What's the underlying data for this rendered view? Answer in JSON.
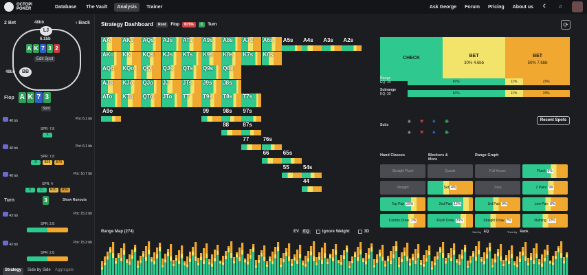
{
  "topbar": {
    "logo_line1": "OCTOPI",
    "logo_line2": "POKER",
    "nav": [
      "Database",
      "The Vault",
      "Analysis",
      "Trainer"
    ],
    "active_nav": "Analysis",
    "right_nav": [
      "Ask George",
      "Forum",
      "Pricing",
      "About us"
    ]
  },
  "left": {
    "bet_label": "2 Bet",
    "back_label": "Back",
    "table": {
      "top_seat": "LJ",
      "top_stack": "48bb",
      "pot": "6.1bb",
      "edit_spot": "Edit Spot",
      "bottom_seat": "BB",
      "bottom_stack": "48bb",
      "board": [
        {
          "rank": "A",
          "color": "g"
        },
        {
          "rank": "K",
          "color": "g"
        },
        {
          "rank": "7",
          "color": "b"
        },
        {
          "rank": "3",
          "color": "g"
        },
        {
          "rank": "2",
          "color": "r"
        }
      ]
    },
    "flop_label": "Flop",
    "flop_cards": [
      {
        "rank": "A",
        "color": "g"
      },
      {
        "rank": "K",
        "color": "g"
      },
      {
        "rank": "7",
        "color": "b"
      },
      {
        "rank": "3",
        "color": "g"
      }
    ],
    "spot_label": "Spot",
    "tree": [
      {
        "seat": "BB",
        "stack": "48 bb",
        "spr": "SPR: 7.8",
        "pot": "Pot: 6.1 bb",
        "actions": [
          "X"
        ]
      },
      {
        "seat": "LJ",
        "stack": "48 bb",
        "spr": "SPR: 7.8",
        "pot": "Pot: 6.1 bb",
        "actions": [
          "X",
          "B25",
          "B75"
        ]
      },
      {
        "seat": "BB",
        "stack": "48 bb",
        "spr": "SPR: 4",
        "pot": "Pot: 10.7 bb",
        "actions": [
          "X",
          "C",
          "R30",
          "R56"
        ]
      }
    ],
    "turn_label": "Turn",
    "turn_card": "3",
    "show_runouts": "Show Runouts",
    "tree2": [
      {
        "seat": "BB",
        "stack": "43 bb",
        "spr": "SPR: 2.8",
        "pot": "Pot: 15.3 bb"
      },
      {
        "seat": "LJ",
        "stack": "43 bb",
        "spr": "SPR: 2.8",
        "pot": "Pot: 15.3 bb"
      }
    ],
    "tabs": [
      "Strategy",
      "Side by Side",
      "Aggregate"
    ],
    "active_tab": "Strategy"
  },
  "main": {
    "title": "Strategy Dashboard",
    "crumbs": [
      "Root",
      "Flop",
      "B75%",
      "C",
      "Turn"
    ],
    "matrix_ranks": [
      "A",
      "K",
      "Q",
      "J",
      "T",
      "9",
      "8",
      "7",
      "6",
      "5",
      "4",
      "3",
      "2"
    ],
    "matrix_visible": [
      [
        "AA",
        "AKs",
        "AQs",
        "AJs",
        "ATs",
        "A9s",
        "A8s",
        "A7s",
        "A6s",
        "A5s",
        "A4s",
        "A3s",
        "A2s"
      ],
      [
        "AKo",
        "KK",
        "KQs",
        "KJs",
        "KTs",
        "K9s",
        "K8s",
        "K7s",
        "K6s"
      ],
      [
        "AQo",
        "KQo",
        "QQ",
        "QJs",
        "QTs",
        "Q9s",
        "Q8s"
      ],
      [
        "AJo",
        "KJo",
        "QJo",
        "JJ",
        "JTs",
        "J9s",
        "J8s"
      ],
      [
        "ATo",
        "KTo",
        "QTo",
        "JTo",
        "TT",
        "T9s",
        "T8s",
        "T7s"
      ],
      [
        "A9o",
        "",
        "",
        "",
        "",
        "99",
        "98s",
        "97s"
      ],
      [
        "",
        "",
        "",
        "",
        "",
        "",
        "88",
        "87s"
      ],
      [
        "",
        "",
        "",
        "",
        "",
        "",
        "",
        "77",
        "76s"
      ],
      [
        "",
        "",
        "",
        "",
        "",
        "",
        "",
        "",
        "66",
        "65s"
      ],
      [
        "",
        "",
        "",
        "",
        "",
        "",
        "",
        "",
        "",
        "55",
        "54s"
      ],
      [
        "",
        "",
        "",
        "",
        "",
        "",
        "",
        "",
        "",
        "",
        "44"
      ]
    ],
    "strategy": [
      {
        "label": "CHECK",
        "sub": "",
        "color": "#2fc98f",
        "flex": 33
      },
      {
        "label": "BET",
        "sub": "30%  4.6bb",
        "color": "#f2e36a",
        "flex": 33
      },
      {
        "label": "BET",
        "sub": "50%  7.6bb",
        "color": "#f0a830",
        "flex": 34
      }
    ],
    "range": {
      "label": "Range",
      "eq": "EQ: 39",
      "segments": [
        {
          "v": "60%",
          "c": "#2fc98f",
          "w": 60
        },
        {
          "v": "11%",
          "c": "#f2e36a",
          "w": 11
        },
        {
          "v": "29%",
          "c": "#f0a830",
          "w": 29
        }
      ]
    },
    "subrange": {
      "label": "Subrange",
      "eq": "EQ: 39",
      "segments": [
        {
          "v": "60%",
          "c": "#2fc98f",
          "w": 60
        },
        {
          "v": "11%",
          "c": "#f2e36a",
          "w": 11
        },
        {
          "v": "29%",
          "c": "#f0a830",
          "w": 29
        }
      ]
    },
    "suits_label": "Suits",
    "recent_spots": "Recent Spots",
    "hand_heads": [
      "Hand Classes",
      "Blockers & More",
      "Range Graph"
    ],
    "hand_classes": [
      {
        "name": "Straight Flush",
        "val": "",
        "dim": true
      },
      {
        "name": "Quads",
        "val": "",
        "dim": true
      },
      {
        "name": "Full House",
        "val": "",
        "dim": true
      },
      {
        "name": "Flush",
        "val": "6%",
        "dim": false
      },
      {
        "name": "Straight",
        "val": "",
        "dim": true
      },
      {
        "name": "Set",
        "val": "4%",
        "dim": false
      },
      {
        "name": "Trips",
        "val": "",
        "dim": true
      },
      {
        "name": "2 Pairs",
        "val": "9%",
        "dim": false
      },
      {
        "name": "Top Pair",
        "val": "29%",
        "dim": false
      },
      {
        "name": "2nd Pair",
        "val": "12%",
        "dim": false
      },
      {
        "name": "3rd Pair",
        "val": "9%",
        "dim": false
      },
      {
        "name": "Low Pair",
        "val": "8%",
        "dim": false
      },
      {
        "name": "Combo Draw",
        "val": "2%",
        "dim": false
      },
      {
        "name": "Flush Draw",
        "val": "20%",
        "dim": false
      },
      {
        "name": "Straight Draw",
        "val": "7%",
        "dim": false
      },
      {
        "name": "Nothing",
        "val": "12%",
        "dim": false
      }
    ],
    "range_map": {
      "label": "Range Map (274)",
      "ev": "EV",
      "eq": "EQ",
      "ignore_weight": "Ignore Weight",
      "three_d": "3D",
      "sort_by": "Sort by",
      "sort_val": "EQ",
      "then_by": "Then by",
      "then_val": "Rank"
    },
    "colors": {
      "check": "#2fc98f",
      "bet_small": "#f2e36a",
      "bet_big": "#f0a830"
    }
  }
}
